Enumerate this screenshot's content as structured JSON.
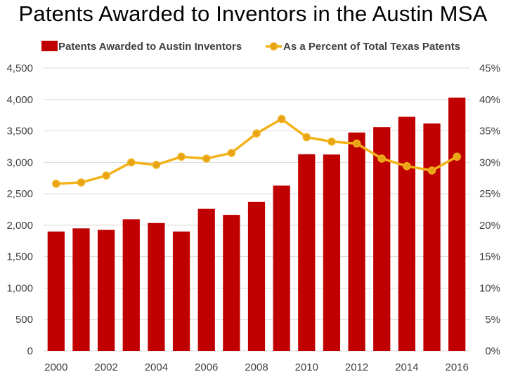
{
  "chart_data": {
    "type": "bar+line",
    "title": "Patents Awarded to Inventors in the Austin MSA",
    "categories": [
      "2000",
      "2001",
      "2002",
      "2003",
      "2004",
      "2005",
      "2006",
      "2007",
      "2008",
      "2009",
      "2010",
      "2011",
      "2012",
      "2013",
      "2014",
      "2015",
      "2016"
    ],
    "x_tick_labels": [
      "2000",
      "2002",
      "2004",
      "2006",
      "2008",
      "2010",
      "2012",
      "2014",
      "2016"
    ],
    "series": [
      {
        "name": "Patents Awarded to Austin Inventors",
        "type": "bar",
        "axis": "left",
        "color": "#C00000",
        "values": [
          1900,
          1950,
          1925,
          2095,
          2035,
          1900,
          2260,
          2165,
          2370,
          2630,
          3130,
          3125,
          3475,
          3560,
          3725,
          3620,
          4030
        ]
      },
      {
        "name": "As a Percent of Total Texas Patents",
        "type": "line",
        "axis": "right",
        "color": "#F2B31A",
        "marker_fill": "#E8A317",
        "values": [
          26.6,
          26.8,
          27.9,
          30.0,
          29.6,
          30.9,
          30.6,
          31.5,
          34.6,
          36.9,
          34.0,
          33.3,
          33.0,
          30.6,
          29.4,
          28.7,
          30.9
        ]
      }
    ],
    "y_left": {
      "min": 0,
      "max": 4500,
      "step": 500,
      "tick_labels": [
        "0",
        "500",
        "1,000",
        "1,500",
        "2,000",
        "2,500",
        "3,000",
        "3,500",
        "4,000",
        "4,500"
      ]
    },
    "y_right": {
      "min": 0,
      "max": 45,
      "step": 5,
      "tick_labels": [
        "0%",
        "5%",
        "10%",
        "15%",
        "20%",
        "25%",
        "30%",
        "35%",
        "40%",
        "45%"
      ]
    },
    "grid": true,
    "legend_position": "top",
    "gridline_color": "#D9D9D9"
  }
}
